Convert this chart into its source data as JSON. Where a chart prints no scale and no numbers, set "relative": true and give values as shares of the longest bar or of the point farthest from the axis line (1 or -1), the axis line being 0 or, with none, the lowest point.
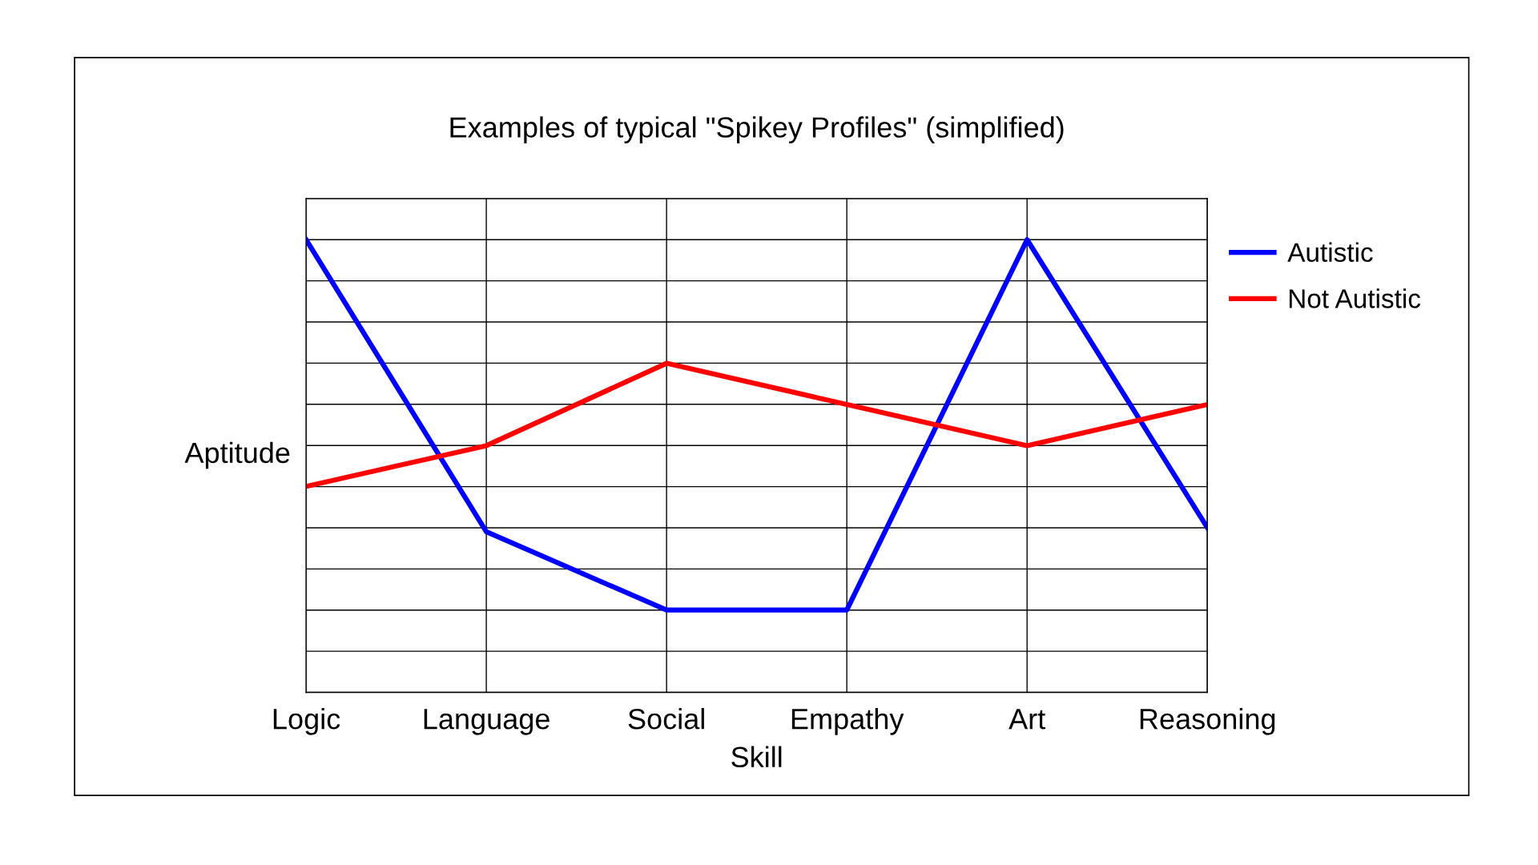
{
  "chart_data": {
    "type": "line",
    "title": "Examples of typical \"Spikey Profiles\" (simplified)",
    "xlabel": "Skill",
    "ylabel": "Aptitude",
    "categories": [
      "Logic",
      "Language",
      "Social",
      "Empathy",
      "Art",
      "Reasoning"
    ],
    "relative": true,
    "grid": true,
    "legend": "right",
    "marker": "none",
    "line_style": "solid",
    "series": [
      {
        "name": "Autistic",
        "color": "#0000ff",
        "values": [
          1,
          0.355,
          0.182,
          0.182,
          1,
          0.364
        ]
      },
      {
        "name": "Not Autistic",
        "color": "#ff0000",
        "values": [
          0.455,
          0.545,
          0.727,
          0.636,
          0.545,
          0.636
        ]
      }
    ]
  }
}
